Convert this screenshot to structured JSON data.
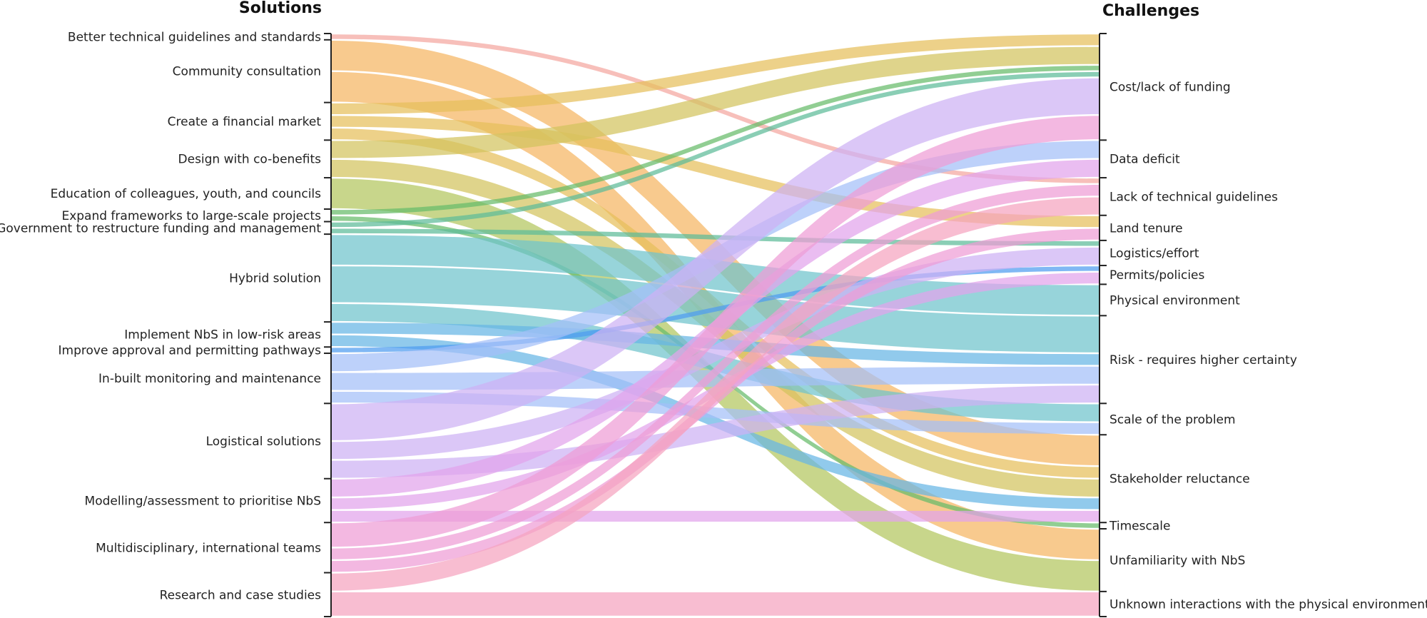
{
  "chart_data": {
    "type": "alluvial",
    "left_axis_title": "Solutions",
    "right_axis_title": "Challenges",
    "left_nodes": [
      {
        "label": "Better technical guidelines and standards",
        "color": "#f4a6a0"
      },
      {
        "label": "Community consultation",
        "color": "#f5b563"
      },
      {
        "label": "Create a financial market",
        "color": "#e6bf5c"
      },
      {
        "label": "Design with co-benefits",
        "color": "#d2c35e"
      },
      {
        "label": "Education of colleagues, youth, and councils",
        "color": "#b3c65e"
      },
      {
        "label": "Expand frameworks to large-scale projects",
        "color": "#67bb6a"
      },
      {
        "label": "Government to restructure funding and management",
        "color": "#5dbb98"
      },
      {
        "label": "Hybrid solution",
        "color": "#6fc3cc"
      },
      {
        "label": "Implement NbS in low-risk areas",
        "color": "#66b5e5"
      },
      {
        "label": "Improve approval and permitting pathways",
        "color": "#4f9cf0"
      },
      {
        "label": "In-built monitoring and maintenance",
        "color": "#a3bff8"
      },
      {
        "label": "Logistical solutions",
        "color": "#cdb2f4"
      },
      {
        "label": "Modelling/assessment to prioritise NbS",
        "color": "#e2a4ec"
      },
      {
        "label": "Multidisciplinary, international teams",
        "color": "#ef9cd6"
      },
      {
        "label": "Research and case studies",
        "color": "#f5a3bf"
      }
    ],
    "right_nodes": [
      "Cost/lack of funding",
      "Data deficit",
      "Lack of technical guidelines",
      "Land tenure",
      "Logistics/effort",
      "Permits/policies",
      "Physical environment",
      "Risk - requires higher certainty",
      "Scale of the problem",
      "Stakeholder reluctance",
      "Timescale",
      "Unfamiliarity with NbS",
      "Unknown interactions with the physical environment"
    ],
    "flows": [
      {
        "from": 0,
        "to": 2,
        "value": 1
      },
      {
        "from": 1,
        "to": 9,
        "value": 5
      },
      {
        "from": 1,
        "to": 11,
        "value": 5
      },
      {
        "from": 2,
        "to": 0,
        "value": 2
      },
      {
        "from": 2,
        "to": 3,
        "value": 2
      },
      {
        "from": 2,
        "to": 9,
        "value": 2
      },
      {
        "from": 3,
        "to": 0,
        "value": 3
      },
      {
        "from": 3,
        "to": 9,
        "value": 3
      },
      {
        "from": 4,
        "to": 11,
        "value": 5
      },
      {
        "from": 5,
        "to": 0,
        "value": 1
      },
      {
        "from": 5,
        "to": 10,
        "value": 1
      },
      {
        "from": 6,
        "to": 0,
        "value": 1
      },
      {
        "from": 6,
        "to": 4,
        "value": 1
      },
      {
        "from": 7,
        "to": 6,
        "value": 5
      },
      {
        "from": 7,
        "to": 7,
        "value": 6
      },
      {
        "from": 7,
        "to": 8,
        "value": 3
      },
      {
        "from": 8,
        "to": 7,
        "value": 2
      },
      {
        "from": 8,
        "to": 9,
        "value": 2
      },
      {
        "from": 9,
        "to": 5,
        "value": 1
      },
      {
        "from": 10,
        "to": 1,
        "value": 3
      },
      {
        "from": 10,
        "to": 7,
        "value": 3
      },
      {
        "from": 10,
        "to": 8,
        "value": 2
      },
      {
        "from": 11,
        "to": 0,
        "value": 6
      },
      {
        "from": 11,
        "to": 4,
        "value": 3
      },
      {
        "from": 11,
        "to": 7,
        "value": 3
      },
      {
        "from": 12,
        "to": 1,
        "value": 3
      },
      {
        "from": 12,
        "to": 5,
        "value": 2
      },
      {
        "from": 12,
        "to": 9,
        "value": 2
      },
      {
        "from": 13,
        "to": 0,
        "value": 4
      },
      {
        "from": 13,
        "to": 2,
        "value": 2
      },
      {
        "from": 13,
        "to": 3,
        "value": 2
      },
      {
        "from": 14,
        "to": 2,
        "value": 3
      },
      {
        "from": 14,
        "to": 12,
        "value": 4
      }
    ],
    "flow_opacity": 0.72
  }
}
